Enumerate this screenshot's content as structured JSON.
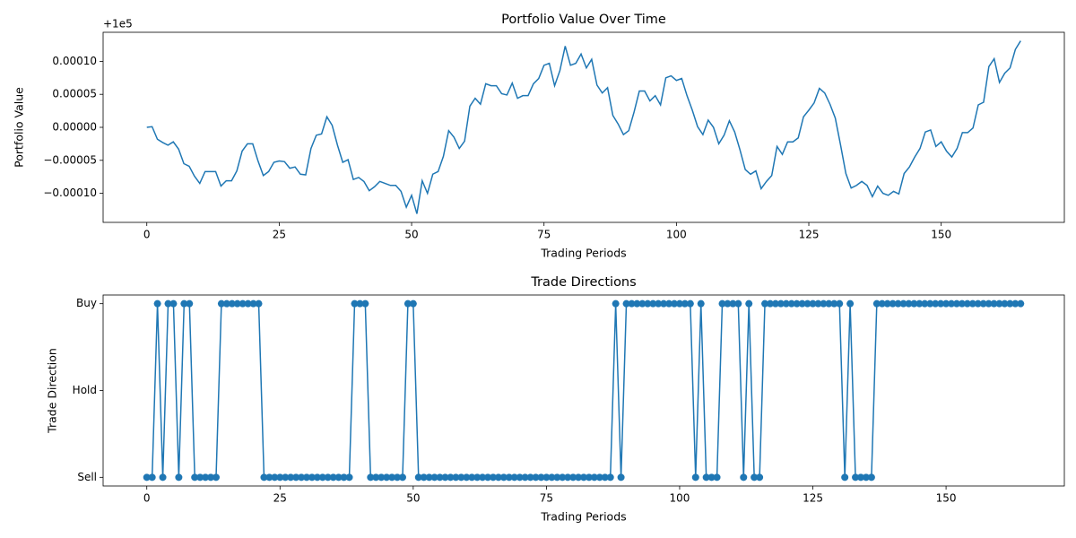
{
  "chart_data": [
    {
      "type": "line",
      "title": "Portfolio Value Over Time",
      "xlabel": "Trading Periods",
      "ylabel": "Portfolio Value",
      "offset_text": "+1e5",
      "x": [
        0,
        1,
        2,
        3,
        4,
        5,
        6,
        7,
        8,
        9,
        10,
        11,
        12,
        13,
        14,
        15,
        16,
        17,
        18,
        19,
        20,
        21,
        22,
        23,
        24,
        25,
        26,
        27,
        28,
        29,
        30,
        31,
        32,
        33,
        34,
        35,
        36,
        37,
        38,
        39,
        40,
        41,
        42,
        43,
        44,
        45,
        46,
        47,
        48,
        49,
        50,
        51,
        52,
        53,
        54,
        55,
        56,
        57,
        58,
        59,
        60,
        61,
        62,
        63,
        64,
        65,
        66,
        67,
        68,
        69,
        70,
        71,
        72,
        73,
        74,
        75,
        76,
        77,
        78,
        79,
        80,
        81,
        82,
        83,
        84,
        85,
        86,
        87,
        88,
        89,
        90,
        91,
        92,
        93,
        94,
        95,
        96,
        97,
        98,
        99,
        100,
        101,
        102,
        103,
        104,
        105,
        106,
        107,
        108,
        109,
        110,
        111,
        112,
        113,
        114,
        115,
        116,
        117,
        118,
        119,
        120,
        121,
        122,
        123,
        124,
        125,
        126,
        127,
        128,
        129,
        130,
        131,
        132,
        133,
        134,
        135,
        136,
        137,
        138,
        139,
        140,
        141,
        142,
        143,
        144,
        145,
        146,
        147,
        148,
        149,
        150,
        151,
        152,
        153,
        154,
        155,
        156,
        157,
        158,
        159,
        160,
        161,
        162,
        163,
        164,
        165
      ],
      "series": [
        {
          "color": "#1f77b4",
          "values": [
            0,
            1e-06,
            -1.8e-05,
            -2.3e-05,
            -2.7e-05,
            -2.2e-05,
            -3.3e-05,
            -5.5e-05,
            -5.9e-05,
            -7.4e-05,
            -8.5e-05,
            -6.7e-05,
            -6.7e-05,
            -6.7e-05,
            -8.9e-05,
            -8.1e-05,
            -8.1e-05,
            -6.6e-05,
            -3.6e-05,
            -2.5e-05,
            -2.5e-05,
            -5.1e-05,
            -7.3e-05,
            -6.7e-05,
            -5.3e-05,
            -5.1e-05,
            -5.2e-05,
            -6.2e-05,
            -6e-05,
            -7.1e-05,
            -7.2e-05,
            -3.2e-05,
            -1.2e-05,
            -1e-05,
            1.6e-05,
            3e-06,
            -2.7e-05,
            -5.3e-05,
            -4.9e-05,
            -7.9e-05,
            -7.6e-05,
            -8.2e-05,
            -9.6e-05,
            -9e-05,
            -8.2e-05,
            -8.5e-05,
            -8.8e-05,
            -8.8e-05,
            -9.7e-05,
            -0.000121,
            -0.000103,
            -0.000131,
            -8.1e-05,
            -0.0001,
            -7.1e-05,
            -6.7e-05,
            -4.4e-05,
            -5e-06,
            -1.5e-05,
            -3.2e-05,
            -2.1e-05,
            3.2e-05,
            4.4e-05,
            3.5e-05,
            6.6e-05,
            6.3e-05,
            6.3e-05,
            5.1e-05,
            4.9e-05,
            6.7e-05,
            4.4e-05,
            4.8e-05,
            4.8e-05,
            6.6e-05,
            7.4e-05,
            9.4e-05,
            9.7e-05,
            6.3e-05,
            8.6e-05,
            0.000123,
            9.4e-05,
            9.7e-05,
            0.000111,
            9e-05,
            0.000103,
            6.4e-05,
            5.2e-05,
            6e-05,
            1.8e-05,
            5e-06,
            -1.1e-05,
            -5e-06,
            2.3e-05,
            5.5e-05,
            5.5e-05,
            4e-05,
            4.8e-05,
            3.4e-05,
            7.5e-05,
            7.8e-05,
            7.1e-05,
            7.4e-05,
            4.8e-05,
            2.6e-05,
            1e-06,
            -1.1e-05,
            1.1e-05,
            0,
            -2.5e-05,
            -1.2e-05,
            1e-05,
            -7e-06,
            -3.4e-05,
            -6.4e-05,
            -7.1e-05,
            -6.6e-05,
            -9.3e-05,
            -8.2e-05,
            -7.3e-05,
            -2.9e-05,
            -4.1e-05,
            -2.2e-05,
            -2.2e-05,
            -1.6e-05,
            1.6e-05,
            2.6e-05,
            3.7e-05,
            5.9e-05,
            5.2e-05,
            3.5e-05,
            1.4e-05,
            -2.7e-05,
            -7e-05,
            -9.2e-05,
            -8.8e-05,
            -8.2e-05,
            -8.8e-05,
            -0.000105,
            -8.9e-05,
            -0.0001,
            -0.000103,
            -9.7e-05,
            -0.000101,
            -7e-05,
            -6e-05,
            -4.5e-05,
            -3.2e-05,
            -7e-06,
            -4e-06,
            -2.9e-05,
            -2.2e-05,
            -3.6e-05,
            -4.5e-05,
            -3.2e-05,
            -8e-06,
            -8e-06,
            -1e-06,
            3.4e-05,
            3.8e-05,
            9.2e-05,
            0.000104,
            6.8e-05,
            8.2e-05,
            9e-05,
            0.000118,
            0.000131
          ]
        }
      ],
      "xlim": [
        -8.25,
        173.25
      ],
      "ylim": [
        -0.000144,
        0.000144
      ],
      "xticks": [
        0,
        25,
        50,
        75,
        100,
        125,
        150
      ],
      "yticks": [
        {
          "value": -0.0001,
          "label": "−0.00010"
        },
        {
          "value": -5e-05,
          "label": "−0.00005"
        },
        {
          "value": 0,
          "label": "0.00000"
        },
        {
          "value": 5e-05,
          "label": "0.00005"
        },
        {
          "value": 0.0001,
          "label": "0.00010"
        }
      ]
    },
    {
      "type": "line",
      "title": "Trade Directions",
      "xlabel": "Trading Periods",
      "ylabel": "Trade Direction",
      "markers": true,
      "x": [
        0,
        1,
        2,
        3,
        4,
        5,
        6,
        7,
        8,
        9,
        10,
        11,
        12,
        13,
        14,
        15,
        16,
        17,
        18,
        19,
        20,
        21,
        22,
        23,
        24,
        25,
        26,
        27,
        28,
        29,
        30,
        31,
        32,
        33,
        34,
        35,
        36,
        37,
        38,
        39,
        40,
        41,
        42,
        43,
        44,
        45,
        46,
        47,
        48,
        49,
        50,
        51,
        52,
        53,
        54,
        55,
        56,
        57,
        58,
        59,
        60,
        61,
        62,
        63,
        64,
        65,
        66,
        67,
        68,
        69,
        70,
        71,
        72,
        73,
        74,
        75,
        76,
        77,
        78,
        79,
        80,
        81,
        82,
        83,
        84,
        85,
        86,
        87,
        88,
        89,
        90,
        91,
        92,
        93,
        94,
        95,
        96,
        97,
        98,
        99,
        100,
        101,
        102,
        103,
        104,
        105,
        106,
        107,
        108,
        109,
        110,
        111,
        112,
        113,
        114,
        115,
        116,
        117,
        118,
        119,
        120,
        121,
        122,
        123,
        124,
        125,
        126,
        127,
        128,
        129,
        130,
        131,
        132,
        133,
        134,
        135,
        136,
        137,
        138,
        139,
        140,
        141,
        142,
        143,
        144,
        145,
        146,
        147,
        148,
        149,
        150,
        151,
        152,
        153,
        154,
        155,
        156,
        157,
        158,
        159,
        160,
        161,
        162,
        163,
        164
      ],
      "series": [
        {
          "color": "#1f77b4",
          "values": [
            -1,
            -1,
            1,
            -1,
            1,
            1,
            -1,
            1,
            1,
            -1,
            -1,
            -1,
            -1,
            -1,
            1,
            1,
            1,
            1,
            1,
            1,
            1,
            1,
            -1,
            -1,
            -1,
            -1,
            -1,
            -1,
            -1,
            -1,
            -1,
            -1,
            -1,
            -1,
            -1,
            -1,
            -1,
            -1,
            -1,
            1,
            1,
            1,
            -1,
            -1,
            -1,
            -1,
            -1,
            -1,
            -1,
            1,
            1,
            -1,
            -1,
            -1,
            -1,
            -1,
            -1,
            -1,
            -1,
            -1,
            -1,
            -1,
            -1,
            -1,
            -1,
            -1,
            -1,
            -1,
            -1,
            -1,
            -1,
            -1,
            -1,
            -1,
            -1,
            -1,
            -1,
            -1,
            -1,
            -1,
            -1,
            -1,
            -1,
            -1,
            -1,
            -1,
            -1,
            -1,
            1,
            -1,
            1,
            1,
            1,
            1,
            1,
            1,
            1,
            1,
            1,
            1,
            1,
            1,
            1,
            -1,
            1,
            -1,
            -1,
            -1,
            1,
            1,
            1,
            1,
            -1,
            1,
            -1,
            -1,
            1,
            1,
            1,
            1,
            1,
            1,
            1,
            1,
            1,
            1,
            1,
            1,
            1,
            1,
            1,
            -1,
            1,
            -1,
            -1,
            -1,
            -1,
            1,
            1,
            1,
            1,
            1,
            1,
            1,
            1,
            1,
            1,
            1,
            1,
            1,
            1,
            1,
            1,
            1,
            1,
            1,
            1,
            1,
            1,
            1,
            1,
            1,
            1,
            1,
            1
          ]
        }
      ],
      "xlim": [
        -8.2,
        172.2
      ],
      "ylim": [
        -1.1,
        1.1
      ],
      "xticks": [
        0,
        25,
        50,
        75,
        100,
        125,
        150
      ],
      "yticks": [
        {
          "value": -1,
          "label": "Sell"
        },
        {
          "value": 0,
          "label": "Hold"
        },
        {
          "value": 1,
          "label": "Buy"
        }
      ]
    }
  ]
}
